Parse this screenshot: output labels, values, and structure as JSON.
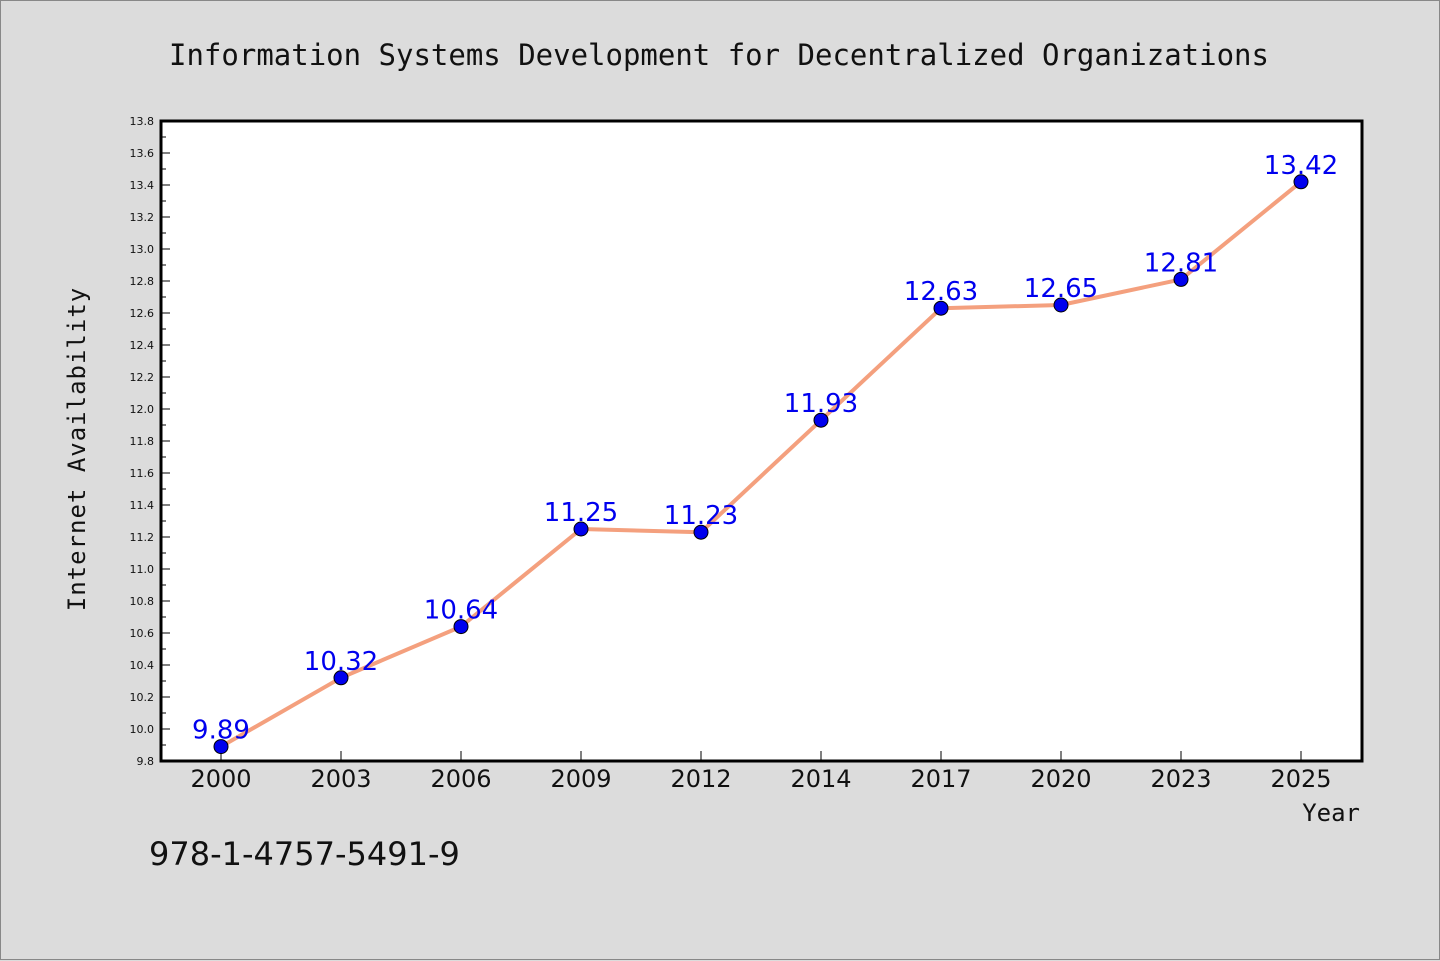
{
  "chart_data": {
    "type": "line",
    "title": "Information Systems Development for Decentralized Organizations",
    "xlabel": "Year",
    "ylabel": "Internet Availability",
    "categories": [
      "2000",
      "2003",
      "2006",
      "2009",
      "2012",
      "2014",
      "2017",
      "2020",
      "2023",
      "2025"
    ],
    "series": [
      {
        "values": [
          9.89,
          10.32,
          10.64,
          11.25,
          11.23,
          11.93,
          12.63,
          12.65,
          12.81,
          13.42
        ],
        "data_labels": [
          "9.89",
          "10.32",
          "10.64",
          "11.25",
          "11.23",
          "11.93",
          "12.63",
          "12.65",
          "12.81",
          "13.42"
        ]
      }
    ],
    "ylim": [
      9.8,
      13.8
    ],
    "yticks": [
      "9.8",
      "10.0",
      "10.2",
      "10.4",
      "10.6",
      "10.8",
      "11.0",
      "11.2",
      "11.4",
      "11.6",
      "11.8",
      "12.0",
      "12.2",
      "12.4",
      "12.6",
      "12.8",
      "13.0",
      "13.2",
      "13.4",
      "13.6",
      "13.8"
    ],
    "grid": false,
    "legend": "none",
    "colors": {
      "line": "#f4a07e",
      "marker": "#0000ee",
      "label": "#0000ee",
      "background": "#dcdcdc",
      "plot_area": "#ffffff"
    }
  },
  "footer": {
    "isbn": "978-1-4757-5491-9"
  }
}
